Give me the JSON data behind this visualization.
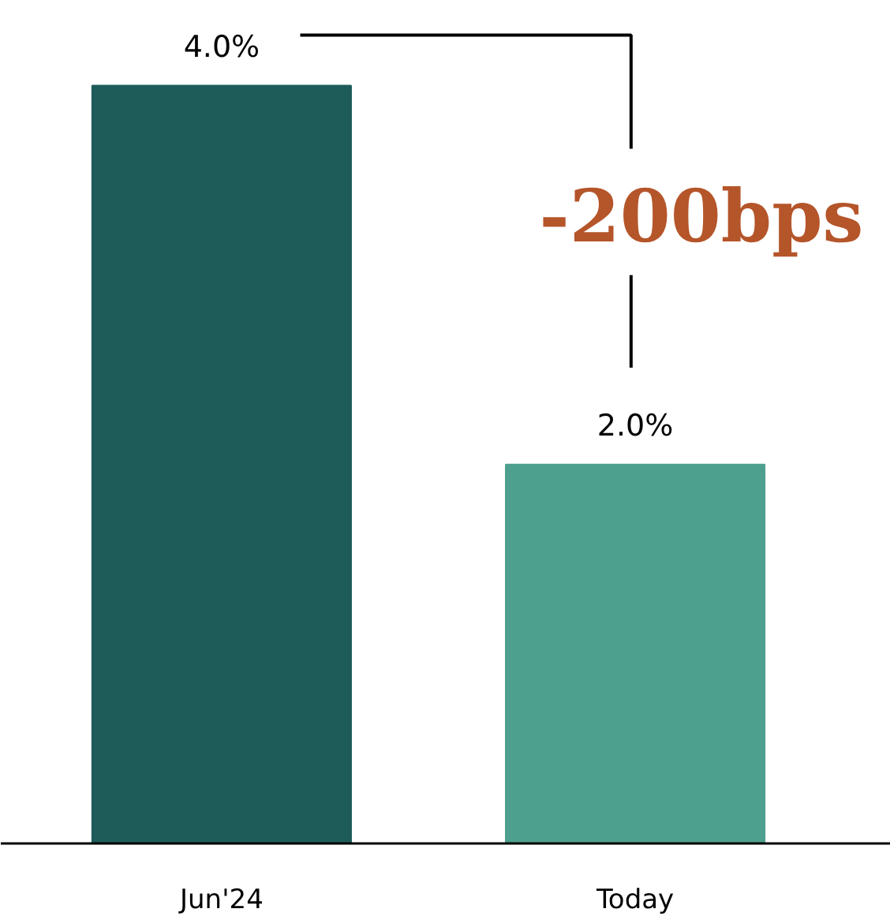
{
  "chart_data": {
    "type": "bar",
    "categories": [
      "Jun'24",
      "Today"
    ],
    "values": [
      4.0,
      2.0
    ],
    "colors": [
      "#1e5c5a",
      "#4ea08e"
    ],
    "value_labels": [
      "4.0%",
      "2.0%"
    ],
    "grid": false,
    "annotations": [
      "-200bps"
    ]
  }
}
